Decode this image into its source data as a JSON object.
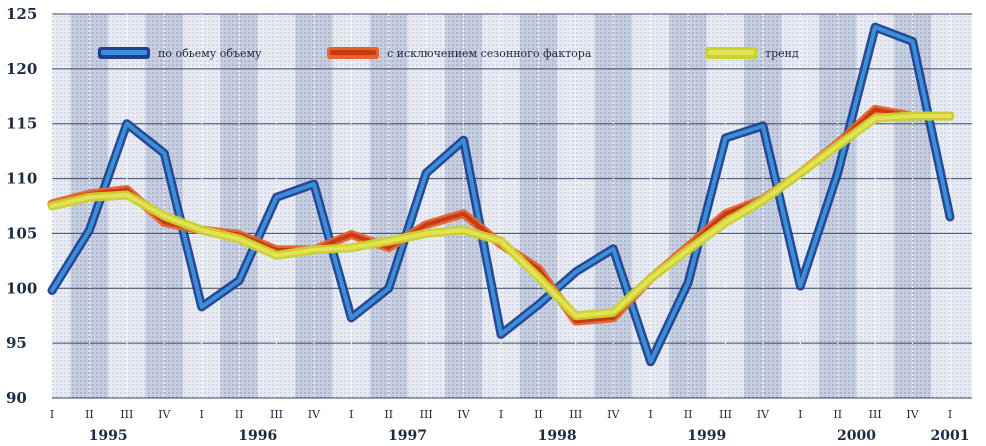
{
  "chart_data": {
    "type": "line",
    "ylim": [
      90,
      125
    ],
    "yticks": [
      90,
      95,
      100,
      105,
      110,
      115,
      120,
      125
    ],
    "quarter_labels": [
      "I",
      "II",
      "III",
      "IV",
      "I",
      "II",
      "III",
      "IV",
      "I",
      "II",
      "III",
      "IV",
      "I",
      "II",
      "III",
      "IV",
      "I",
      "II",
      "III",
      "IV",
      "I",
      "II",
      "III",
      "IV",
      "I"
    ],
    "year_labels": [
      {
        "label": "1995",
        "index": 1.5
      },
      {
        "label": "1996",
        "index": 5.5
      },
      {
        "label": "1997",
        "index": 9.5
      },
      {
        "label": "1998",
        "index": 13.5
      },
      {
        "label": "1999",
        "index": 17.5
      },
      {
        "label": "2000",
        "index": 21.5
      },
      {
        "label": "2001",
        "index": 24
      }
    ],
    "grid": true,
    "legend_position": "top",
    "series": [
      {
        "name": "по обьему объему",
        "color": "#1f3f8f",
        "color2": "#3b8fd8",
        "values": [
          99.8,
          105.3,
          115.0,
          112.3,
          98.3,
          100.7,
          108.3,
          109.5,
          97.3,
          100.0,
          110.5,
          113.5,
          95.8,
          98.5,
          101.5,
          103.6,
          93.3,
          100.5,
          113.7,
          114.8,
          100.2,
          110.5,
          123.8,
          122.5,
          106.5
        ]
      },
      {
        "name": "с исключением сезонного фактора",
        "color": "#e8622a",
        "color2": "#c63a14",
        "values": [
          107.7,
          108.6,
          109.0,
          106.0,
          105.3,
          104.9,
          103.5,
          103.5,
          104.9,
          103.7,
          105.8,
          106.8,
          104.0,
          101.8,
          97.0,
          97.3,
          100.9,
          103.8,
          106.8,
          108.1,
          110.5,
          113.2,
          116.3,
          115.7,
          115.7
        ]
      },
      {
        "name": "тренд",
        "color": "#c7d32e",
        "color2": "#e6e056",
        "values": [
          107.5,
          108.3,
          108.5,
          106.6,
          105.3,
          104.5,
          103.0,
          103.5,
          103.7,
          104.3,
          105.0,
          105.3,
          104.3,
          101.0,
          97.5,
          97.8,
          100.9,
          103.5,
          106.0,
          108.0,
          110.5,
          113.0,
          115.5,
          115.7,
          115.7
        ]
      }
    ]
  }
}
